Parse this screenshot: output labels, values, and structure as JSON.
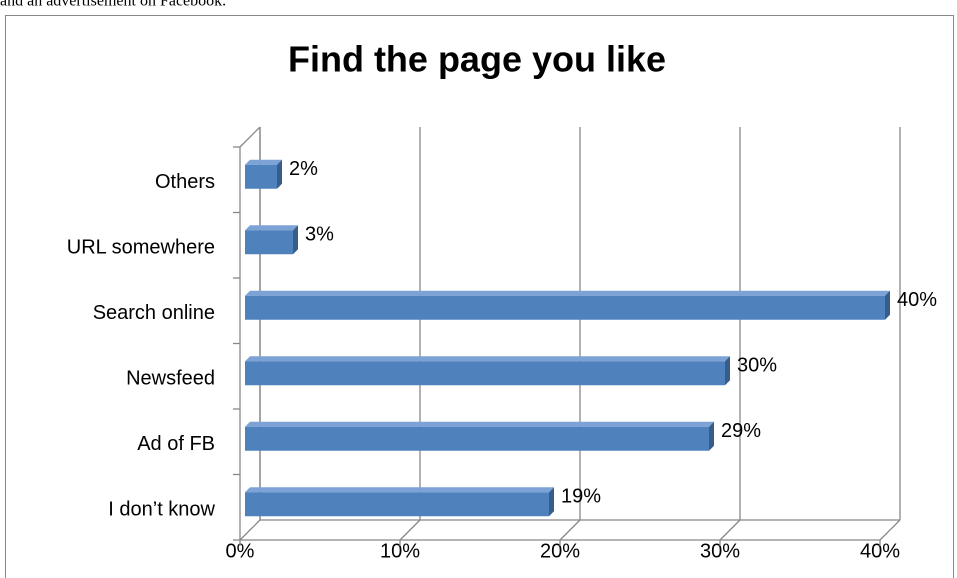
{
  "caption": "and an advertisement on Facebook.",
  "chart_data": {
    "type": "bar",
    "orientation": "horizontal",
    "title": "Find the page you like",
    "categories": [
      "I don’t know",
      "Ad of FB",
      "Newsfeed",
      "Search online",
      "URL somewhere",
      "Others"
    ],
    "values": [
      19,
      29,
      30,
      40,
      3,
      2
    ],
    "value_labels": [
      "19%",
      "29%",
      "30%",
      "40%",
      "3%",
      "2%"
    ],
    "color": "#4f81bd",
    "xlim": [
      0,
      40
    ],
    "xticks": [
      {
        "value": 0,
        "label": "0%"
      },
      {
        "value": 10,
        "label": "10%"
      },
      {
        "value": 20,
        "label": "20%"
      },
      {
        "value": 30,
        "label": "30%"
      },
      {
        "value": 40,
        "label": "40%"
      }
    ],
    "grid": true
  }
}
